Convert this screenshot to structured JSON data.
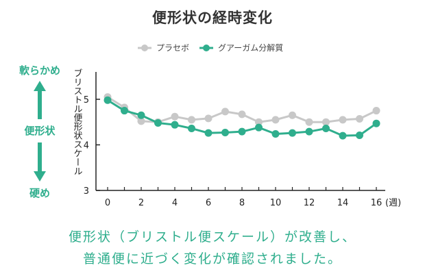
{
  "chart_data": {
    "type": "line",
    "title": "便形状の経時変化",
    "ylabel": "ブリストル便形状スケール",
    "xunit": "(週)",
    "x": [
      0,
      1,
      2,
      3,
      4,
      5,
      6,
      7,
      8,
      9,
      10,
      11,
      12,
      13,
      14,
      15,
      16
    ],
    "xticks": [
      0,
      2,
      4,
      6,
      8,
      10,
      12,
      14,
      16
    ],
    "yticks": [
      3,
      4,
      5
    ],
    "xlim": [
      0,
      16
    ],
    "ylim": [
      3,
      5.6
    ],
    "legend_position": "top",
    "series": [
      {
        "name": "プラセボ",
        "color": "#c8c8c8",
        "values": [
          5.05,
          4.82,
          4.52,
          4.5,
          4.62,
          4.55,
          4.58,
          4.73,
          4.67,
          4.5,
          4.55,
          4.65,
          4.5,
          4.5,
          4.55,
          4.57,
          4.75
        ]
      },
      {
        "name": "グアーガム分解質",
        "color": "#2fae8d",
        "values": [
          4.98,
          4.75,
          4.65,
          4.48,
          4.44,
          4.36,
          4.26,
          4.27,
          4.29,
          4.38,
          4.24,
          4.26,
          4.29,
          4.36,
          4.2,
          4.21,
          4.47
        ]
      }
    ]
  },
  "side_labels": {
    "top": "軟らかめ",
    "middle": "便形状",
    "bottom": "硬め"
  },
  "colors": {
    "accent": "#2fae8d",
    "placebo": "#c8c8c8"
  },
  "caption": {
    "line1": "便形状（ブリストル便スケール）が改善し、",
    "line2": "普通便に近づく変化が確認されました。"
  }
}
